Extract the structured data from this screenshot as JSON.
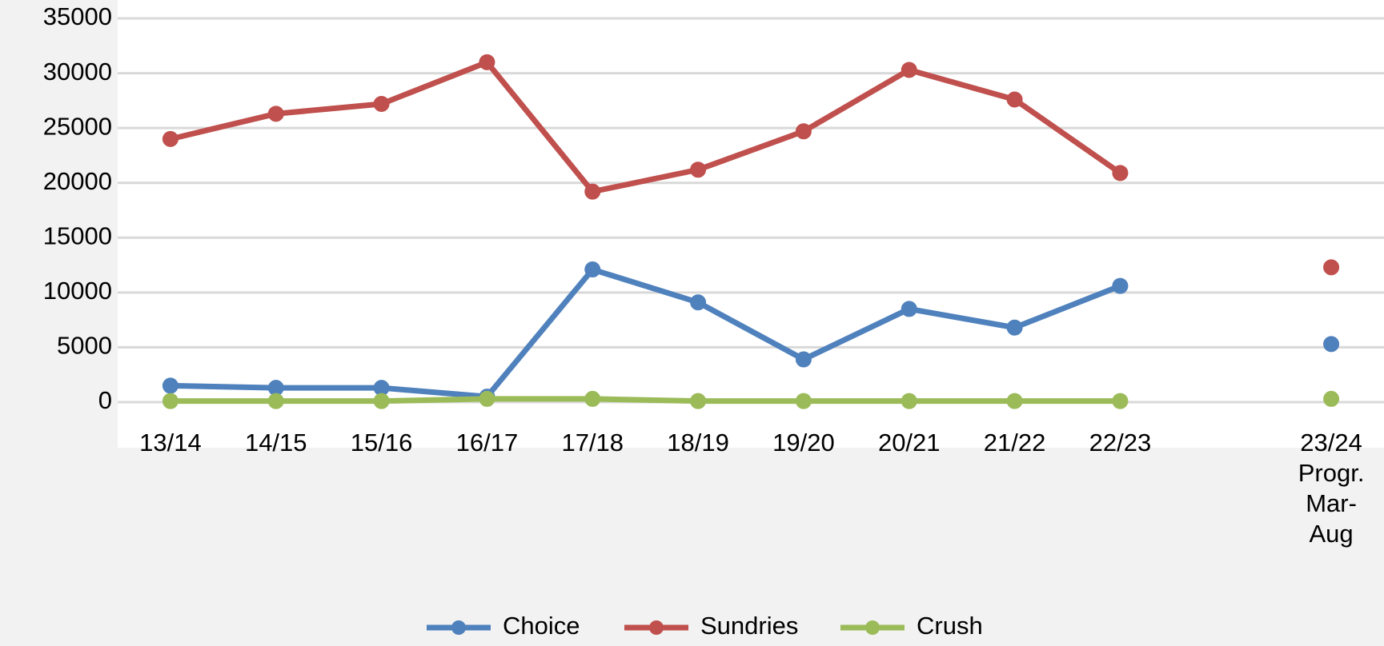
{
  "chart_data": {
    "type": "line",
    "categories": [
      "13/14",
      "14/15",
      "15/16",
      "16/17",
      "17/18",
      "18/19",
      "19/20",
      "20/21",
      "21/22",
      "22/23",
      null,
      "23/24 Progr. Mar-Aug"
    ],
    "series": [
      {
        "name": "Choice",
        "color": "#4f81bd",
        "values": [
          1500,
          1300,
          1300,
          500,
          12100,
          9100,
          3900,
          8500,
          6800,
          10600,
          null,
          5300
        ]
      },
      {
        "name": "Sundries",
        "color": "#c0504d",
        "values": [
          24000,
          26300,
          27200,
          31000,
          19200,
          21200,
          24700,
          30300,
          27600,
          20900,
          null,
          12300
        ]
      },
      {
        "name": "Crush",
        "color": "#9bbb59",
        "values": [
          100,
          100,
          100,
          300,
          300,
          100,
          100,
          100,
          100,
          100,
          null,
          300
        ]
      }
    ],
    "ylim": [
      0,
      35000
    ],
    "yticks": [
      0,
      5000,
      10000,
      15000,
      20000,
      25000,
      30000,
      35000
    ],
    "grid": true,
    "legend": "bottom"
  }
}
